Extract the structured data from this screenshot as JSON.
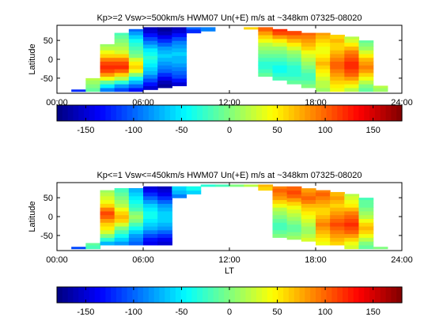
{
  "colormap": "jet",
  "chart_data": [
    {
      "type": "heatmap",
      "title": "Kp>=2 Vsw>=500km/s HWM07 Un(+E) m/s at ~348km 07325-08020",
      "xlabel": "",
      "ylabel": "Latitude",
      "xlim": [
        0,
        24
      ],
      "ylim": [
        -90,
        90
      ],
      "xticks": [
        "00:00",
        "06:00",
        "12:00",
        "18:00",
        "24:00"
      ],
      "yticks": [
        "50",
        "0",
        "-50"
      ],
      "cell_height_deg": 10,
      "columns": [
        {
          "lt": 1.5,
          "lat_min": -85,
          "lat_max": -80,
          "values": [
            -120
          ]
        },
        {
          "lt": 2.5,
          "lat_min": -85,
          "lat_max": -50,
          "values": [
            -10,
            0,
            10,
            20
          ]
        },
        {
          "lt": 3.5,
          "lat_min": -85,
          "lat_max": 40,
          "values": [
            -90,
            -50,
            -10,
            40,
            80,
            110,
            120,
            110,
            90,
            60,
            40,
            20,
            10
          ]
        },
        {
          "lt": 4.5,
          "lat_min": -85,
          "lat_max": 70,
          "values": [
            -110,
            -80,
            -30,
            20,
            60,
            100,
            120,
            110,
            90,
            60,
            30,
            20,
            10,
            0,
            -10,
            -20
          ]
        },
        {
          "lt": 5.5,
          "lat_min": -85,
          "lat_max": 80,
          "values": [
            -130,
            -100,
            -70,
            -40,
            0,
            40,
            60,
            50,
            30,
            0,
            -10,
            -20,
            -30,
            -40,
            -60,
            -80,
            -100
          ]
        },
        {
          "lt": 6.5,
          "lat_min": -80,
          "lat_max": 85,
          "values": [
            -150,
            -130,
            -110,
            -90,
            -70,
            -60,
            -50,
            -40,
            -30,
            -40,
            -50,
            -70,
            -90,
            -110,
            -130,
            -150,
            -160
          ]
        },
        {
          "lt": 7.5,
          "lat_min": -75,
          "lat_max": 85,
          "values": [
            -170,
            -160,
            -140,
            -120,
            -100,
            -90,
            -80,
            -70,
            -60,
            -70,
            -80,
            -100,
            -120,
            -140,
            -160,
            -170
          ]
        },
        {
          "lt": 8.5,
          "lat_min": -70,
          "lat_max": 85,
          "values": [
            -150,
            -130,
            -110,
            -100,
            -90,
            -80,
            -70,
            -70,
            -60,
            -70,
            -80,
            -90,
            -110,
            -130,
            -150,
            -160
          ]
        },
        {
          "lt": 9.5,
          "lat_min": 70,
          "lat_max": 85,
          "values": [
            -120,
            -100
          ]
        },
        {
          "lt": 10.5,
          "lat_min": 75,
          "lat_max": 85,
          "values": [
            -90
          ]
        },
        {
          "lt": 13.5,
          "lat_min": 80,
          "lat_max": 85,
          "values": [
            60
          ]
        },
        {
          "lt": 14.5,
          "lat_min": -45,
          "lat_max": 85,
          "values": [
            -10,
            -20,
            -30,
            -30,
            -20,
            -10,
            0,
            10,
            20,
            40,
            60,
            80,
            100
          ]
        },
        {
          "lt": 15.5,
          "lat_min": -55,
          "lat_max": 80,
          "values": [
            -20,
            -30,
            -40,
            -40,
            -30,
            -20,
            -10,
            0,
            10,
            30,
            50,
            80,
            110,
            120
          ]
        },
        {
          "lt": 16.5,
          "lat_min": -65,
          "lat_max": 75,
          "values": [
            -10,
            -20,
            -30,
            -30,
            -30,
            -20,
            -10,
            0,
            10,
            30,
            50,
            70,
            90,
            110
          ]
        },
        {
          "lt": 17.5,
          "lat_min": -75,
          "lat_max": 70,
          "values": [
            0,
            -10,
            -20,
            -20,
            -10,
            0,
            10,
            20,
            30,
            40,
            60,
            70,
            80,
            90,
            100
          ]
        },
        {
          "lt": 18.5,
          "lat_min": -85,
          "lat_max": 70,
          "values": [
            10,
            20,
            20,
            30,
            40,
            50,
            60,
            70,
            60,
            50,
            40,
            40,
            50,
            60,
            70,
            80
          ]
        },
        {
          "lt": 19.5,
          "lat_min": -85,
          "lat_max": 65,
          "values": [
            40,
            50,
            60,
            70,
            80,
            90,
            100,
            100,
            90,
            80,
            70,
            60,
            60,
            70,
            60
          ]
        },
        {
          "lt": 20.5,
          "lat_min": -85,
          "lat_max": 60,
          "values": [
            20,
            40,
            60,
            80,
            100,
            110,
            120,
            120,
            110,
            100,
            90,
            70,
            50,
            30,
            20
          ]
        },
        {
          "lt": 21.5,
          "lat_min": -85,
          "lat_max": 50,
          "values": [
            -10,
            0,
            20,
            40,
            60,
            80,
            90,
            80,
            70,
            50,
            30,
            10,
            0,
            -10
          ]
        },
        {
          "lt": 22.5,
          "lat_min": -85,
          "lat_max": -70,
          "values": [
            10,
            20
          ]
        }
      ]
    },
    {
      "type": "heatmap",
      "title": "Kp<=1 Vsw<=450km/s HWM07 Un(+E) m/s at ~348km 07325-08020",
      "xlabel": "LT",
      "ylabel": "Latitude",
      "xlim": [
        0,
        24
      ],
      "ylim": [
        -90,
        90
      ],
      "xticks": [
        "00:00",
        "06:00",
        "12:00",
        "18:00",
        "24:00"
      ],
      "yticks": [
        "50",
        "0",
        "-50"
      ],
      "cell_height_deg": 10,
      "columns": [
        {
          "lt": 1.5,
          "lat_min": -85,
          "lat_max": -80,
          "values": [
            -110
          ]
        },
        {
          "lt": 2.5,
          "lat_min": -85,
          "lat_max": -70,
          "values": [
            -20,
            -10
          ]
        },
        {
          "lt": 3.5,
          "lat_min": -75,
          "lat_max": 70,
          "values": [
            -70,
            -30,
            0,
            30,
            50,
            60,
            80,
            100,
            110,
            90,
            60,
            40,
            30,
            20,
            10
          ]
        },
        {
          "lt": 4.5,
          "lat_min": -75,
          "lat_max": 75,
          "values": [
            -80,
            -60,
            -40,
            -20,
            0,
            30,
            60,
            70,
            60,
            40,
            20,
            10,
            0,
            -10,
            -20,
            -30
          ]
        },
        {
          "lt": 5.5,
          "lat_min": -75,
          "lat_max": 75,
          "values": [
            -100,
            -90,
            -80,
            -60,
            -40,
            -20,
            0,
            10,
            0,
            -20,
            -30,
            -40,
            -50,
            -60,
            -70,
            -80
          ]
        },
        {
          "lt": 6.5,
          "lat_min": -75,
          "lat_max": 80,
          "values": [
            -140,
            -130,
            -110,
            -90,
            -70,
            -60,
            -50,
            -40,
            -40,
            -50,
            -60,
            -80,
            -100,
            -120,
            -140,
            -150
          ]
        },
        {
          "lt": 7.5,
          "lat_min": -75,
          "lat_max": 80,
          "values": [
            -150,
            -140,
            -120,
            -100,
            -80,
            -70,
            -60,
            -60,
            -60,
            -70,
            -80,
            -100,
            -120,
            -140,
            -150,
            -160
          ]
        },
        {
          "lt": 8.5,
          "lat_min": 50,
          "lat_max": 80,
          "values": [
            -90,
            -70,
            -60,
            -50
          ]
        },
        {
          "lt": 9.5,
          "lat_min": 60,
          "lat_max": 80,
          "values": [
            -60,
            -40,
            -30
          ]
        },
        {
          "lt": 10.5,
          "lat_min": 80,
          "lat_max": 85,
          "values": [
            -30
          ]
        },
        {
          "lt": 11.5,
          "lat_min": 80,
          "lat_max": 85,
          "values": [
            -20
          ]
        },
        {
          "lt": 12.5,
          "lat_min": 80,
          "lat_max": 85,
          "values": [
            0
          ]
        },
        {
          "lt": 13.5,
          "lat_min": 80,
          "lat_max": 85,
          "values": [
            20
          ]
        },
        {
          "lt": 14.5,
          "lat_min": 70,
          "lat_max": 85,
          "values": [
            60,
            70
          ]
        },
        {
          "lt": 15.5,
          "lat_min": -55,
          "lat_max": 80,
          "values": [
            0,
            -10,
            -20,
            -20,
            -10,
            0,
            10,
            20,
            40,
            60,
            80,
            90,
            100,
            90
          ]
        },
        {
          "lt": 16.5,
          "lat_min": -60,
          "lat_max": 80,
          "values": [
            10,
            0,
            -10,
            -10,
            0,
            10,
            20,
            30,
            40,
            60,
            80,
            100,
            110,
            100
          ]
        },
        {
          "lt": 17.5,
          "lat_min": -65,
          "lat_max": 75,
          "values": [
            30,
            20,
            10,
            10,
            20,
            30,
            40,
            50,
            60,
            70,
            90,
            100,
            90,
            80
          ]
        },
        {
          "lt": 18.5,
          "lat_min": -75,
          "lat_max": 70,
          "values": [
            40,
            50,
            60,
            70,
            80,
            90,
            80,
            70,
            60,
            60,
            70,
            80,
            90,
            100,
            90
          ]
        },
        {
          "lt": 19.5,
          "lat_min": -75,
          "lat_max": 65,
          "values": [
            60,
            70,
            80,
            90,
            100,
            110,
            100,
            90,
            80,
            70,
            60,
            70,
            80,
            70
          ]
        },
        {
          "lt": 20.5,
          "lat_min": -85,
          "lat_max": 60,
          "values": [
            30,
            40,
            60,
            80,
            100,
            110,
            120,
            110,
            100,
            90,
            70,
            50,
            40,
            30,
            20
          ]
        },
        {
          "lt": 21.5,
          "lat_min": -85,
          "lat_max": 50,
          "values": [
            -10,
            0,
            20,
            40,
            60,
            70,
            60,
            40,
            20,
            10,
            0,
            -10,
            -10,
            -20
          ]
        },
        {
          "lt": 22.5,
          "lat_min": -85,
          "lat_max": -80,
          "values": [
            0
          ]
        }
      ]
    }
  ],
  "colorbars": [
    {
      "range": [
        -180,
        180
      ],
      "ticks": [
        -150,
        -100,
        -50,
        0,
        50,
        100,
        150
      ]
    },
    {
      "range": [
        -180,
        180
      ],
      "ticks": [
        -150,
        -100,
        -50,
        0,
        50,
        100,
        150
      ]
    }
  ]
}
